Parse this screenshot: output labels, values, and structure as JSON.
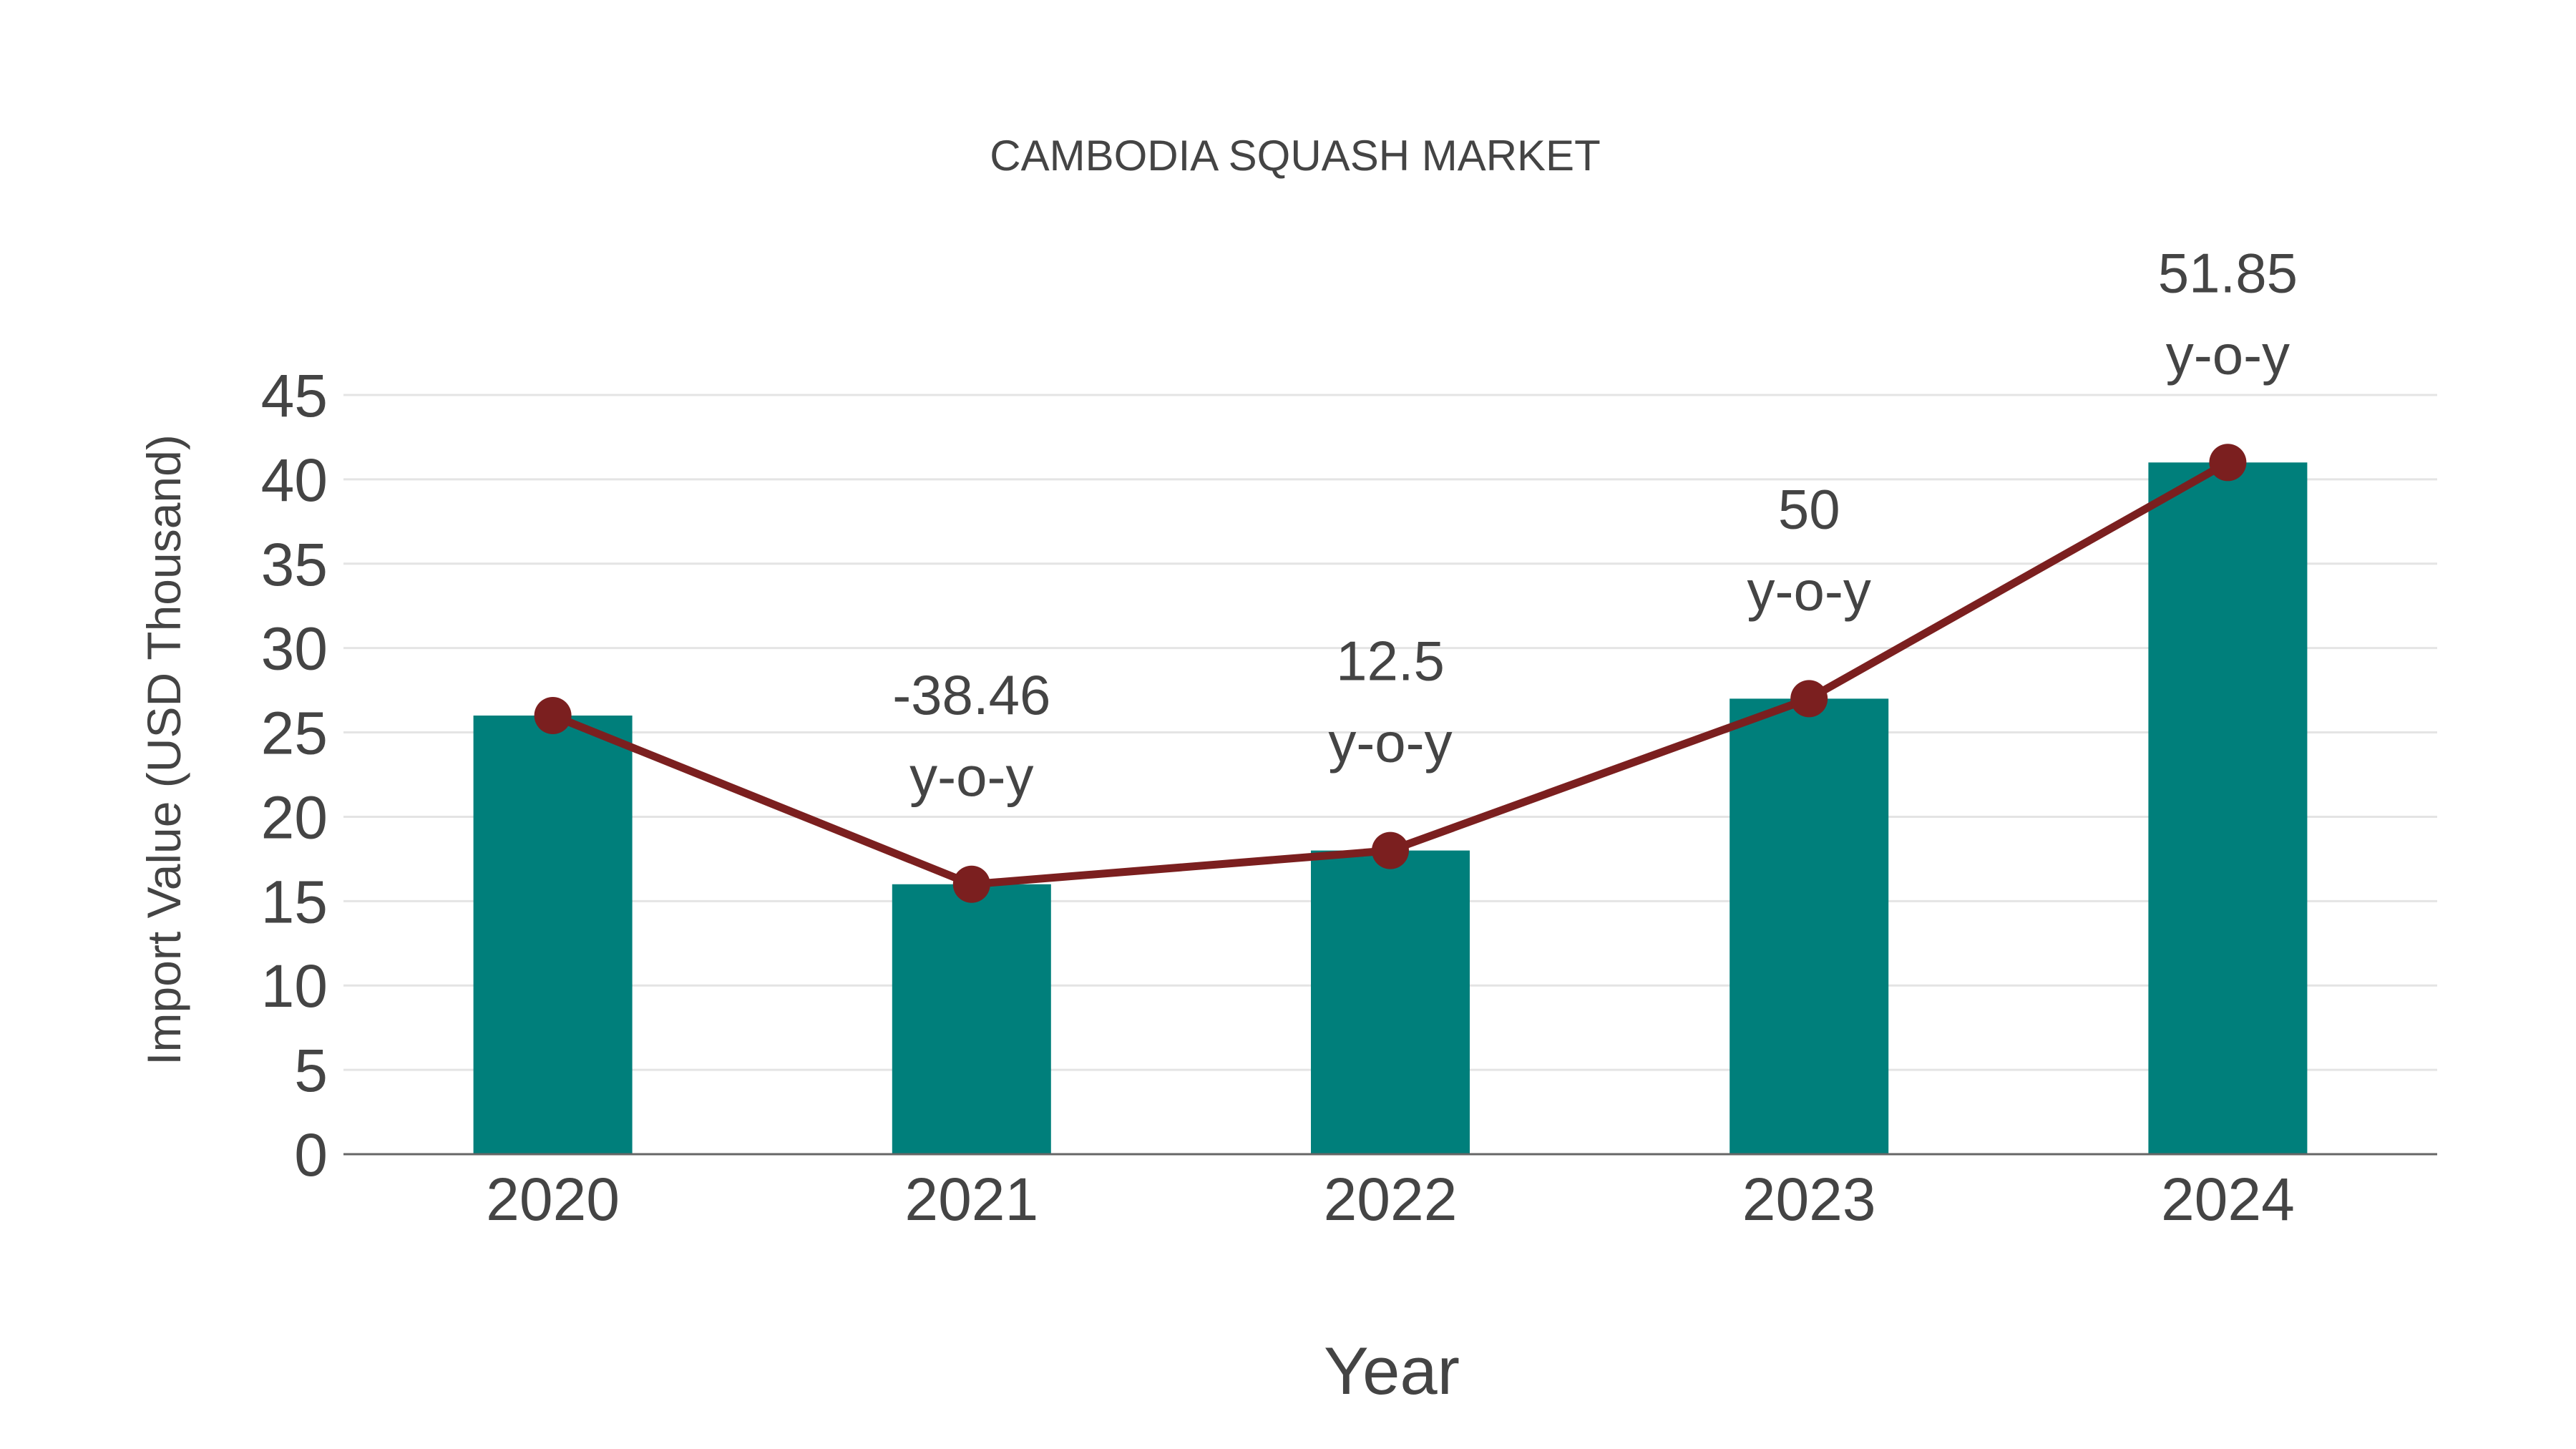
{
  "chart_data": {
    "type": "bar",
    "title": "CAMBODIA SQUASH MARKET",
    "xlabel": "Year",
    "ylabel": "Import Value (USD Thousand)",
    "ylim": [
      0,
      45
    ],
    "yticks": [
      0,
      5,
      10,
      15,
      20,
      25,
      30,
      35,
      40,
      45
    ],
    "grid": true,
    "categories": [
      "2020",
      "2021",
      "2022",
      "2023",
      "2024"
    ],
    "series": [
      {
        "name": "Import Value",
        "type": "bar",
        "color": "#007f7b",
        "values": [
          26,
          16,
          18,
          27,
          41
        ]
      },
      {
        "name": "Trend",
        "type": "line",
        "color": "#7b1f1f",
        "values": [
          26,
          16,
          18,
          27,
          41
        ]
      }
    ],
    "annotations": [
      {
        "category": "2021",
        "value": "-38.46",
        "suffix": "y-o-y"
      },
      {
        "category": "2022",
        "value": "12.5",
        "suffix": "y-o-y"
      },
      {
        "category": "2023",
        "value": "50",
        "suffix": "y-o-y"
      },
      {
        "category": "2024",
        "value": "51.85",
        "suffix": "y-o-y"
      }
    ]
  }
}
